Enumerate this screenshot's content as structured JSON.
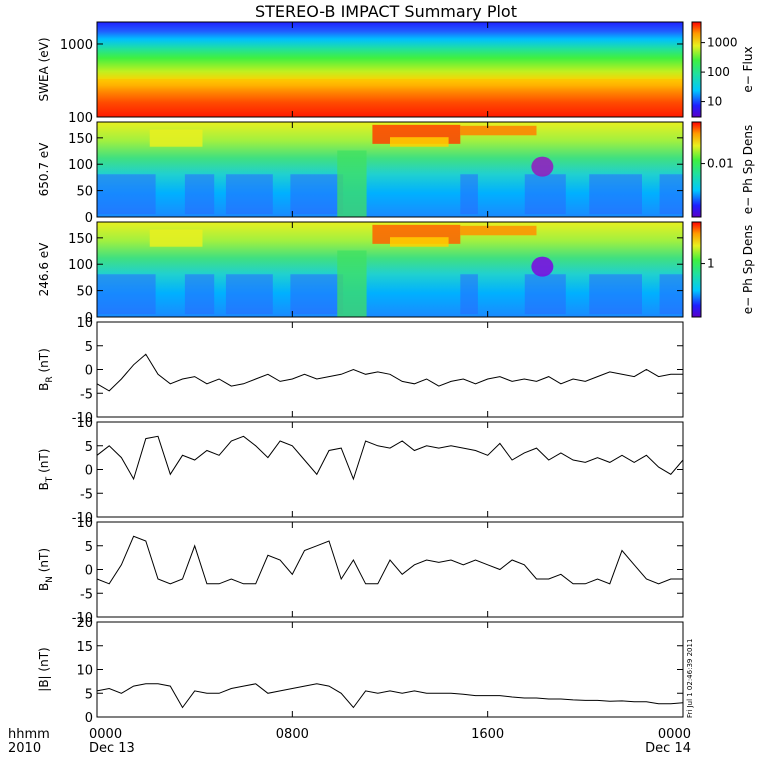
{
  "title": "STEREO-B IMPACT Summary Plot",
  "side_stamp": "Fri Jul 1 02:46:39 2011",
  "x_axis": {
    "corner_top": "hhmm",
    "corner_bottom": "2010",
    "ticks": [
      {
        "top": "0000",
        "bottom": "Dec 13",
        "hour": 0
      },
      {
        "top": "0800",
        "bottom": "",
        "hour": 8
      },
      {
        "top": "1600",
        "bottom": "",
        "hour": 16
      },
      {
        "top": "0000",
        "bottom": "Dec 14",
        "hour": 24
      }
    ],
    "range_hours": [
      0,
      24
    ]
  },
  "chart_data": [
    {
      "type": "heatmap",
      "id": "swea",
      "ylabel": "SWEA (eV)",
      "ylog": true,
      "ylim": [
        100,
        2000
      ],
      "yticks": [
        {
          "label": "1000",
          "value": 1000
        },
        {
          "label": "100",
          "value": 100
        }
      ],
      "colorbar": {
        "label": "e− Flux",
        "log": true,
        "range": [
          3,
          5000
        ],
        "ticks": [
          {
            "label": "1000",
            "value": 1000
          },
          {
            "label": "100",
            "value": 100
          },
          {
            "label": "10",
            "value": 10
          }
        ]
      },
      "description_values": {
        "x_hours": [
          0,
          24
        ],
        "energy_eV": [
          100,
          2000
        ]
      }
    },
    {
      "type": "heatmap",
      "id": "pad650",
      "ylabel": "650.7 eV",
      "ylim": [
        0,
        180
      ],
      "yticks": [
        {
          "label": "150",
          "value": 150
        },
        {
          "label": "100",
          "value": 100
        },
        {
          "label": "50",
          "value": 50
        },
        {
          "label": "0",
          "value": 0
        }
      ],
      "colorbar": {
        "label": "e− Ph Sp Dens",
        "log": true,
        "range": [
          0.001,
          0.06
        ],
        "ticks": [
          {
            "label": "0.01",
            "value": 0.01
          }
        ]
      }
    },
    {
      "type": "heatmap",
      "id": "pad246",
      "ylabel": "246.6 eV",
      "ylim": [
        0,
        180
      ],
      "yticks": [
        {
          "label": "150",
          "value": 150
        },
        {
          "label": "100",
          "value": 100
        },
        {
          "label": "50",
          "value": 50
        },
        {
          "label": "0",
          "value": 0
        }
      ],
      "colorbar": {
        "label": "e− Ph Sp Dens",
        "log": true,
        "range": [
          0.1,
          6
        ],
        "ticks": [
          {
            "label": "1",
            "value": 1
          }
        ]
      }
    },
    {
      "type": "line",
      "id": "br",
      "ylabel": "B",
      "ysub": "R",
      "yunit": " (nT)",
      "ylim": [
        -10,
        10
      ],
      "yticks": [
        10,
        5,
        0,
        -5,
        -10
      ],
      "x": [
        0,
        0.5,
        1,
        1.5,
        2,
        2.5,
        3,
        3.5,
        4,
        4.5,
        5,
        5.5,
        6,
        6.5,
        7,
        7.5,
        8,
        8.5,
        9,
        9.5,
        10,
        10.5,
        11,
        11.5,
        12,
        12.5,
        13,
        13.5,
        14,
        14.5,
        15,
        15.5,
        16,
        16.5,
        17,
        17.5,
        18,
        18.5,
        19,
        19.5,
        20,
        20.5,
        21,
        21.5,
        22,
        22.5,
        23,
        23.5,
        24
      ],
      "y": [
        -3,
        -4.5,
        -2,
        1,
        3.2,
        -1,
        -3,
        -2,
        -1.5,
        -3,
        -2,
        -3.5,
        -3,
        -2,
        -1,
        -2.5,
        -2,
        -1,
        -2,
        -1.5,
        -1,
        0,
        -1,
        -0.5,
        -1,
        -2.5,
        -3,
        -2,
        -3.5,
        -2.5,
        -2,
        -3,
        -2,
        -1.5,
        -2.5,
        -2,
        -2.5,
        -1.5,
        -3,
        -2,
        -2.5,
        -1.5,
        -0.5,
        -1,
        -1.5,
        0,
        -1.5,
        -1,
        -1
      ]
    },
    {
      "type": "line",
      "id": "bt",
      "ylabel": "B",
      "ysub": "T",
      "yunit": " (nT)",
      "ylim": [
        -10,
        10
      ],
      "yticks": [
        10,
        5,
        0,
        -5,
        -10
      ],
      "x": [
        0,
        0.5,
        1,
        1.5,
        2,
        2.5,
        3,
        3.5,
        4,
        4.5,
        5,
        5.5,
        6,
        6.5,
        7,
        7.5,
        8,
        8.5,
        9,
        9.5,
        10,
        10.5,
        11,
        11.5,
        12,
        12.5,
        13,
        13.5,
        14,
        14.5,
        15,
        15.5,
        16,
        16.5,
        17,
        17.5,
        18,
        18.5,
        19,
        19.5,
        20,
        20.5,
        21,
        21.5,
        22,
        22.5,
        23,
        23.5,
        24
      ],
      "y": [
        3,
        5,
        2.5,
        -2,
        6.5,
        7,
        -1,
        3,
        2,
        4,
        3,
        6,
        7,
        5,
        2.5,
        6,
        5,
        2,
        -1,
        4,
        4.5,
        -2,
        6,
        5,
        4.5,
        6,
        4,
        5,
        4.5,
        5,
        4.5,
        4,
        3,
        5.5,
        2,
        3.5,
        4.5,
        2,
        3.5,
        2,
        1.5,
        2.5,
        1.5,
        3,
        1.5,
        3,
        0.5,
        -1,
        2
      ]
    },
    {
      "type": "line",
      "id": "bn",
      "ylabel": "B",
      "ysub": "N",
      "yunit": " (nT)",
      "ylim": [
        -10,
        10
      ],
      "yticks": [
        10,
        5,
        0,
        -5,
        -10
      ],
      "x": [
        0,
        0.5,
        1,
        1.5,
        2,
        2.5,
        3,
        3.5,
        4,
        4.5,
        5,
        5.5,
        6,
        6.5,
        7,
        7.5,
        8,
        8.5,
        9,
        9.5,
        10,
        10.5,
        11,
        11.5,
        12,
        12.5,
        13,
        13.5,
        14,
        14.5,
        15,
        15.5,
        16,
        16.5,
        17,
        17.5,
        18,
        18.5,
        19,
        19.5,
        20,
        20.5,
        21,
        21.5,
        22,
        22.5,
        23,
        23.5,
        24
      ],
      "y": [
        -2,
        -3,
        1,
        7,
        6,
        -2,
        -3,
        -2,
        5,
        -3,
        -3,
        -2,
        -3,
        -3,
        3,
        2,
        -1,
        4,
        5,
        6,
        -2,
        2,
        -3,
        -3,
        2,
        -1,
        1,
        2,
        1.5,
        2,
        1,
        2,
        1,
        0,
        2,
        1,
        -2,
        -2,
        -1,
        -3,
        -3,
        -2,
        -3,
        4,
        1,
        -2,
        -3,
        -2,
        -2
      ]
    },
    {
      "type": "line",
      "id": "bmag",
      "ylabel": "|B| (nT)",
      "ylim": [
        0,
        20
      ],
      "yticks": [
        20,
        15,
        10,
        5,
        0
      ],
      "x": [
        0,
        0.5,
        1,
        1.5,
        2,
        2.5,
        3,
        3.5,
        4,
        4.5,
        5,
        5.5,
        6,
        6.5,
        7,
        7.5,
        8,
        8.5,
        9,
        9.5,
        10,
        10.5,
        11,
        11.5,
        12,
        12.5,
        13,
        13.5,
        14,
        14.5,
        15,
        15.5,
        16,
        16.5,
        17,
        17.5,
        18,
        18.5,
        19,
        19.5,
        20,
        20.5,
        21,
        21.5,
        22,
        22.5,
        23,
        23.5,
        24
      ],
      "y": [
        5.5,
        6,
        5,
        6.5,
        7,
        7,
        6.5,
        2,
        5.5,
        5,
        5,
        6,
        6.5,
        7,
        5,
        5.5,
        6,
        6.5,
        7,
        6.5,
        5,
        2,
        5.5,
        5,
        5.5,
        5,
        5.5,
        5,
        5,
        5,
        4.8,
        4.5,
        4.5,
        4.5,
        4.2,
        4,
        4,
        3.8,
        3.8,
        3.6,
        3.5,
        3.5,
        3.3,
        3.4,
        3.2,
        3.2,
        2.8,
        2.8,
        3
      ]
    }
  ]
}
